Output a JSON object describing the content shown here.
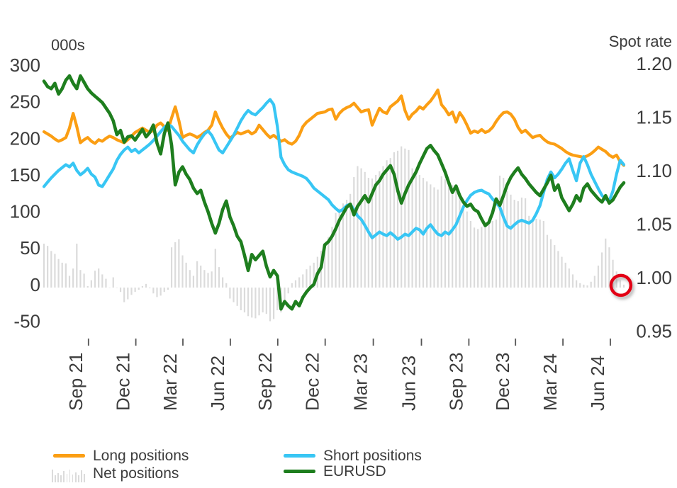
{
  "chart": {
    "left_axis": {
      "title": "000s",
      "ticks": [
        {
          "label": "300",
          "value": 300
        },
        {
          "label": "250",
          "value": 250
        },
        {
          "label": "200",
          "value": 200
        },
        {
          "label": "150",
          "value": 150
        },
        {
          "label": "100",
          "value": 100
        },
        {
          "label": "50",
          "value": 50
        },
        {
          "label": "0",
          "value": 0
        },
        {
          "label": "-50",
          "value": -50
        }
      ]
    },
    "right_axis": {
      "title": "Spot rate",
      "ticks": [
        {
          "label": "1.20",
          "value": 1.2
        },
        {
          "label": "1.15",
          "value": 1.15
        },
        {
          "label": "1.10",
          "value": 1.1
        },
        {
          "label": "1.05",
          "value": 1.05
        },
        {
          "label": "1.00",
          "value": 1.0
        },
        {
          "label": "0.95",
          "value": 0.95
        }
      ]
    },
    "x_axis": {
      "labels": [
        {
          "label": "Sep 21",
          "week": 12.2
        },
        {
          "label": "Dec 21",
          "week": 25.2
        },
        {
          "label": "Mar 22",
          "week": 38.1
        },
        {
          "label": "Jun 22",
          "week": 51.1
        },
        {
          "label": "Sep 22",
          "week": 64.1
        },
        {
          "label": "Dec 22",
          "week": 77.1
        },
        {
          "label": "Mar 23",
          "week": 90.3
        },
        {
          "label": "Jun 23",
          "week": 103.5
        },
        {
          "label": "Sep 23",
          "week": 116.5
        },
        {
          "label": "Dec 23",
          "week": 129.3
        },
        {
          "label": "Mar 24",
          "week": 142.3
        },
        {
          "label": "Jun 24",
          "week": 155.3
        }
      ]
    },
    "annotation": {
      "name": "red-circle-highlight",
      "week": 158.2,
      "value": 3,
      "radius": 14,
      "color": "#e30613"
    },
    "colors": {
      "long": "#fb9e13",
      "short": "#38c6f4",
      "eurusd": "#1e7e1e",
      "net_bars": "#dbdbdb",
      "text": "#3c3c3c"
    }
  },
  "legend": {
    "items": [
      {
        "label": "Long positions",
        "swatch": "line",
        "color": "#fb9e13"
      },
      {
        "label": "Net positions",
        "swatch": "bars",
        "color": "#dbdbdb"
      },
      {
        "label": "Short positions",
        "swatch": "line",
        "color": "#38c6f4"
      },
      {
        "label": "EURUSD",
        "swatch": "line",
        "color": "#1e7e1e"
      }
    ]
  },
  "chart_data": {
    "type": "combo",
    "subtype": "weekly bar + line, dual axis",
    "frequency": "weekly",
    "x_span": [
      "Jul 2021",
      "Jul 2024"
    ],
    "left_axis_label": "000s",
    "right_axis_label": "Spot rate",
    "left_axis_range": [
      -50,
      300
    ],
    "right_axis_range": [
      0.95,
      1.2
    ],
    "grid": "off",
    "legend_position": "bottom",
    "x_tick_labels": [
      "Sep 21",
      "Dec 21",
      "Mar 22",
      "Jun 22",
      "Sep 22",
      "Dec 22",
      "Mar 23",
      "Jun 23",
      "Sep 23",
      "Dec 23",
      "Mar 24",
      "Jun 24"
    ],
    "net_positions": {
      "name": "Net positions",
      "type": "bar",
      "axis": "left",
      "color": "#dbdbdb",
      "values": [
        60,
        57,
        50,
        46,
        39,
        34,
        33,
        16,
        26,
        60,
        24,
        19,
        2,
        10,
        23,
        26,
        18,
        12,
        0,
        14,
        0,
        -6,
        -20,
        -16,
        -10,
        -6,
        -3,
        2,
        5,
        -1,
        -8,
        -13,
        -11,
        -6,
        -3,
        55,
        62,
        66,
        44,
        34,
        24,
        16,
        36,
        30,
        24,
        20,
        22,
        53,
        28,
        14,
        6,
        -15,
        -20,
        -25,
        -31,
        -34,
        -39,
        -41,
        -42,
        -38,
        -34,
        -36,
        -46,
        -43,
        -31,
        -34,
        -20,
        -8,
        6,
        10,
        14,
        18,
        25,
        30,
        34,
        42,
        50,
        59,
        69,
        83,
        102,
        108,
        115,
        120,
        128,
        151,
        166,
        163,
        158,
        150,
        149,
        154,
        159,
        166,
        174,
        177,
        185,
        187,
        193,
        190,
        188,
        163,
        160,
        154,
        150,
        145,
        141,
        137,
        134,
        152,
        148,
        144,
        140,
        134,
        128,
        118,
        104,
        91,
        82,
        80,
        83,
        85,
        88,
        91,
        93,
        153,
        150,
        132,
        127,
        120,
        118,
        123,
        122,
        98,
        94,
        94,
        93,
        91,
        72,
        66,
        58,
        50,
        42,
        34,
        26,
        18,
        10,
        6,
        4,
        3,
        8,
        16,
        30,
        48,
        67,
        55,
        38,
        22,
        10,
        4
      ]
    },
    "series": [
      {
        "name": "Long positions",
        "type": "line",
        "axis": "left",
        "color": "#fb9e13",
        "values": [
          213,
          210,
          207,
          203,
          200,
          202,
          205,
          218,
          238,
          220,
          198,
          202,
          205,
          200,
          197,
          202,
          200,
          204,
          207,
          205,
          202,
          200,
          198,
          202,
          207,
          212,
          215,
          218,
          215,
          212,
          215,
          222,
          225,
          220,
          215,
          232,
          247,
          228,
          205,
          208,
          210,
          208,
          205,
          208,
          212,
          215,
          222,
          240,
          228,
          218,
          210,
          204,
          208,
          212,
          210,
          212,
          214,
          210,
          213,
          222,
          216,
          210,
          205,
          208,
          204,
          200,
          202,
          198,
          196,
          200,
          208,
          220,
          226,
          230,
          234,
          238,
          239,
          240,
          243,
          244,
          230,
          238,
          243,
          246,
          248,
          252,
          246,
          240,
          242,
          243,
          222,
          234,
          245,
          240,
          238,
          247,
          251,
          255,
          262,
          242,
          230,
          237,
          241,
          247,
          244,
          250,
          255,
          262,
          270,
          250,
          244,
          236,
          240,
          226,
          239,
          232,
          222,
          211,
          214,
          212,
          216,
          212,
          214,
          219,
          227,
          234,
          239,
          240,
          237,
          230,
          219,
          212,
          215,
          210,
          205,
          207,
          208,
          203,
          199,
          197,
          196,
          193,
          190,
          186,
          183,
          181,
          180,
          179,
          178,
          180,
          183,
          187,
          192,
          189,
          186,
          181,
          178,
          181,
          172,
          167
        ]
      },
      {
        "name": "Short positions",
        "type": "line",
        "axis": "left",
        "color": "#38c6f4",
        "values": [
          138,
          144,
          150,
          155,
          160,
          164,
          168,
          165,
          170,
          160,
          154,
          158,
          163,
          155,
          151,
          140,
          138,
          146,
          154,
          162,
          174,
          182,
          188,
          192,
          186,
          189,
          184,
          188,
          192,
          196,
          201,
          207,
          213,
          219,
          223,
          220,
          214,
          208,
          200,
          194,
          188,
          184,
          195,
          203,
          210,
          214,
          208,
          198,
          188,
          184,
          192,
          200,
          208,
          218,
          228,
          236,
          242,
          238,
          236,
          241,
          246,
          252,
          257,
          250,
          220,
          178,
          168,
          161,
          158,
          156,
          154,
          152,
          149,
          143,
          136,
          132,
          128,
          124,
          120,
          113,
          108,
          104,
          107,
          112,
          114,
          106,
          98,
          93,
          85,
          76,
          68,
          72,
          76,
          73,
          71,
          75,
          71,
          66,
          69,
          73,
          71,
          76,
          81,
          79,
          73,
          81,
          86,
          79,
          73,
          71,
          76,
          73,
          79,
          86,
          98,
          110,
          119,
          126,
          130,
          132,
          133,
          130,
          128,
          121,
          116,
          110,
          96,
          84,
          81,
          86,
          90,
          92,
          90,
          88,
          92,
          101,
          112,
          130,
          148,
          158,
          150,
          155,
          162,
          170,
          176,
          160,
          146,
          170,
          179,
          168,
          155,
          145,
          135,
          126,
          121,
          118,
          132,
          155,
          174,
          168
        ]
      },
      {
        "name": "EURUSD",
        "type": "line",
        "axis": "right",
        "color": "#1e7e1e",
        "values": [
          1.185,
          1.18,
          1.178,
          1.183,
          1.173,
          1.178,
          1.186,
          1.19,
          1.183,
          1.178,
          1.19,
          1.184,
          1.178,
          1.174,
          1.171,
          1.168,
          1.165,
          1.16,
          1.155,
          1.148,
          1.135,
          1.139,
          1.128,
          1.133,
          1.134,
          1.13,
          1.135,
          1.14,
          1.133,
          1.137,
          1.144,
          1.127,
          1.117,
          1.136,
          1.146,
          1.125,
          1.088,
          1.1,
          1.105,
          1.098,
          1.093,
          1.085,
          1.08,
          1.083,
          1.072,
          1.063,
          1.052,
          1.043,
          1.052,
          1.065,
          1.073,
          1.058,
          1.05,
          1.04,
          1.035,
          1.022,
          1.008,
          1.023,
          1.018,
          1.022,
          1.026,
          1.012,
          1.002,
          1.008,
          1.003,
          0.972,
          0.979,
          0.975,
          0.972,
          0.979,
          0.975,
          0.983,
          0.988,
          0.992,
          0.995,
          1.005,
          1.011,
          1.032,
          1.035,
          1.04,
          1.047,
          1.055,
          1.061,
          1.067,
          1.07,
          1.06,
          1.068,
          1.073,
          1.078,
          1.072,
          1.08,
          1.088,
          1.092,
          1.098,
          1.102,
          1.106,
          1.098,
          1.083,
          1.071,
          1.08,
          1.088,
          1.094,
          1.1,
          1.108,
          1.115,
          1.122,
          1.125,
          1.12,
          1.116,
          1.108,
          1.1,
          1.09,
          1.081,
          1.087,
          1.078,
          1.072,
          1.068,
          1.07,
          1.065,
          1.063,
          1.056,
          1.05,
          1.053,
          1.062,
          1.075,
          1.069,
          1.078,
          1.088,
          1.095,
          1.1,
          1.104,
          1.098,
          1.094,
          1.089,
          1.085,
          1.081,
          1.078,
          1.084,
          1.09,
          1.097,
          1.083,
          1.088,
          1.076,
          1.07,
          1.064,
          1.07,
          1.078,
          1.073,
          1.085,
          1.089,
          1.083,
          1.079,
          1.075,
          1.072,
          1.078,
          1.071,
          1.074,
          1.08,
          1.086,
          1.09
        ]
      }
    ]
  }
}
